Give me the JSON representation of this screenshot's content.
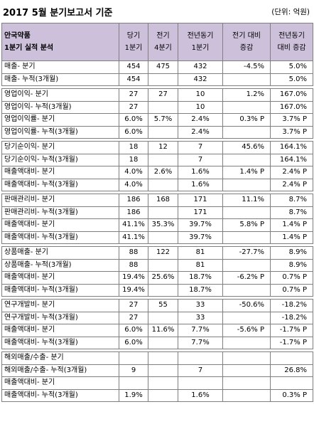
{
  "title": "2017 5월 분기보고서 기준",
  "unit": "(단위: 억원)",
  "table": {
    "header": [
      [
        "안국약품",
        "1분기 실적 분석"
      ],
      [
        "당기",
        "1분기"
      ],
      [
        "전기",
        "4분기"
      ],
      [
        "전년동기",
        "1분기"
      ],
      [
        "전기 대비",
        "증감"
      ],
      [
        "전년동기",
        "대비 증감"
      ]
    ],
    "groups": [
      [
        [
          "매출- 분기",
          "454",
          "475",
          "432",
          "-4.5%",
          "5.0%"
        ],
        [
          "매출- 누적(3개월)",
          "454",
          null,
          "432",
          null,
          "5.0%"
        ]
      ],
      [
        [
          "영업이익- 분기",
          "27",
          "27",
          "10",
          "1.2%",
          "167.0%"
        ],
        [
          "영업이익- 누적(3개월)",
          "27",
          null,
          "10",
          null,
          "167.0%"
        ],
        [
          "영업이익률- 분기",
          "6.0%",
          "5.7%",
          "2.4%",
          "0.3% P",
          "3.7% P"
        ],
        [
          "영업이익률- 누적(3개월)",
          "6.0%",
          null,
          "2.4%",
          null,
          "3.7% P"
        ]
      ],
      [
        [
          "당기순이익- 분기",
          "18",
          "12",
          "7",
          "45.6%",
          "164.1%"
        ],
        [
          "당기순이익- 누적(3개월)",
          "18",
          null,
          "7",
          null,
          "164.1%"
        ],
        [
          "매출액대비- 분기",
          "4.0%",
          "2.6%",
          "1.6%",
          "1.4% P",
          "2.4% P"
        ],
        [
          "매출액대비- 누적(3개월)",
          "4.0%",
          null,
          "1.6%",
          null,
          "2.4% P"
        ]
      ],
      [
        [
          "판매관리비- 분기",
          "186",
          "168",
          "171",
          "11.1%",
          "8.7%"
        ],
        [
          "판매관리비- 누적(3개월)",
          "186",
          null,
          "171",
          null,
          "8.7%"
        ],
        [
          "매출액대비- 분기",
          "41.1%",
          "35.3%",
          "39.7%",
          "5.8% P",
          "1.4% P"
        ],
        [
          "매출액대비- 누적(3개월)",
          "41.1%",
          null,
          "39.7%",
          null,
          "1.4% P"
        ]
      ],
      [
        [
          "상품매출- 분기",
          "88",
          "122",
          "81",
          "-27.7%",
          "8.9%"
        ],
        [
          "상품매출- 누적(3개월)",
          "88",
          null,
          "81",
          null,
          "8.9%"
        ],
        [
          "매출액대비- 분기",
          "19.4%",
          "25.6%",
          "18.7%",
          "-6.2% P",
          "0.7% P"
        ],
        [
          "매출액대비- 누적(3개월)",
          "19.4%",
          null,
          "18.7%",
          null,
          "0.7% P"
        ]
      ],
      [
        [
          "연구개발비- 분기",
          "27",
          "55",
          "33",
          "-50.6%",
          "-18.2%"
        ],
        [
          "연구개발비- 누적(3개월)",
          "27",
          null,
          "33",
          null,
          "-18.2%"
        ],
        [
          "매출액대비- 분기",
          "6.0%",
          "11.6%",
          "7.7%",
          "-5.6% P",
          "-1.7% P"
        ],
        [
          "매출액대비- 누적(3개월)",
          "6.0%",
          null,
          "7.7%",
          null,
          "-1.7% P"
        ]
      ],
      [
        [
          "해외매출/수출- 분기",
          null,
          null,
          null,
          null,
          null
        ],
        [
          "해외매출/수출- 누적(3개월)",
          "9",
          null,
          "7",
          null,
          "26.8%"
        ],
        [
          "매출액대비- 분기",
          null,
          null,
          null,
          null,
          null
        ],
        [
          "매출액대비- 누적(3개월)",
          "1.9%",
          null,
          "1.6%",
          null,
          "0.3% P"
        ]
      ]
    ]
  }
}
